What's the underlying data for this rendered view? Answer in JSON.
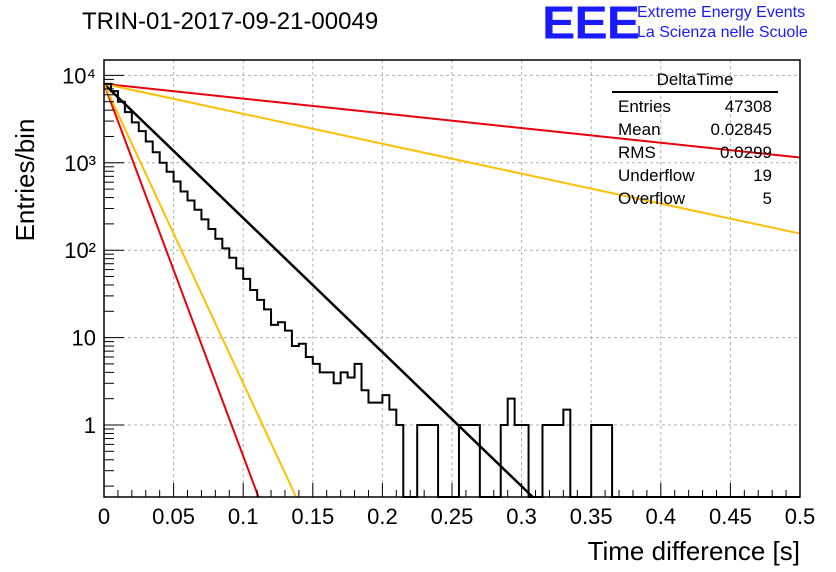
{
  "header": {
    "title": "TRIN-01-2017-09-21-00049",
    "logo_letters": "EEE",
    "logo_line1": "Extreme Energy Events",
    "logo_line2": "La Scienza nelle Scuole"
  },
  "stats_box": {
    "name": "DeltaTime",
    "rows": [
      {
        "label": "Entries",
        "value": "47308"
      },
      {
        "label": "Mean",
        "value": "0.02845"
      },
      {
        "label": "RMS",
        "value": "0.0299"
      },
      {
        "label": "Underflow",
        "value": "19"
      },
      {
        "label": "Overflow",
        "value": "5"
      }
    ]
  },
  "colors": {
    "histogram": "#000000",
    "fit_black": "#000000",
    "red": "#e8000b",
    "orange": "#ffbf00",
    "grid": "#b0b0b0"
  },
  "chart_data": {
    "type": "line",
    "xlabel": "Time difference [s]",
    "ylabel": "Entries/bin",
    "xlim": [
      0,
      0.5
    ],
    "ylim": [
      0.15,
      15000
    ],
    "log_y": true,
    "grid": true,
    "x_ticks": [
      "0",
      "0.05",
      "0.1",
      "0.15",
      "0.2",
      "0.25",
      "0.3",
      "0.35",
      "0.4",
      "0.45",
      "0.5"
    ],
    "y_ticks": [
      {
        "value": 1,
        "label": "1"
      },
      {
        "value": 10,
        "label": "10"
      },
      {
        "value": 100,
        "label": "10²"
      },
      {
        "value": 1000,
        "label": "10³"
      },
      {
        "value": 10000,
        "label": "10⁴"
      }
    ],
    "histogram": {
      "bin_width": 0.005,
      "counts": [
        8000,
        6600,
        5000,
        3800,
        2900,
        2300,
        1750,
        1320,
        1000,
        790,
        610,
        470,
        370,
        290,
        225,
        175,
        135,
        105,
        82,
        62,
        47,
        35,
        27,
        21,
        14,
        15,
        12,
        8,
        8.5,
        6,
        5,
        4,
        4,
        3,
        4,
        3.5,
        5,
        2.5,
        1.8,
        1.8,
        2.2,
        1.5,
        1,
        0.15,
        0.15,
        1,
        1,
        1,
        0.15,
        0.15,
        0.15,
        1,
        1,
        1,
        0.15,
        0.15,
        0.15,
        1,
        2,
        1,
        1,
        0.15,
        0.15,
        1,
        1,
        1,
        1.5,
        0.15,
        0.15,
        0.15,
        1,
        1,
        1,
        0.15,
        0.15,
        0.15,
        0.15,
        0.15,
        0.15,
        0.15,
        0.15,
        0.15,
        0.15,
        0.15,
        0.15,
        0.15,
        0.15,
        0.15,
        0.15,
        0.15,
        0.15,
        0.15,
        0.15,
        0.15,
        0.15,
        0.15,
        0.15,
        0.15,
        0.15,
        0.15
      ]
    },
    "series": [
      {
        "color": "#000000",
        "x": [
          0,
          0.308
        ],
        "y": [
          8000,
          0.15
        ]
      },
      {
        "color": "#e8000b",
        "x": [
          0,
          0.5
        ],
        "y": [
          8000,
          1150
        ]
      },
      {
        "color": "#ffbf00",
        "x": [
          0,
          0.5
        ],
        "y": [
          8000,
          155
        ]
      },
      {
        "color": "#e8000b",
        "x": [
          0,
          0.111
        ],
        "y": [
          8000,
          0.15
        ]
      },
      {
        "color": "#ffbf00",
        "x": [
          0,
          0.138
        ],
        "y": [
          8000,
          0.15
        ]
      }
    ]
  }
}
